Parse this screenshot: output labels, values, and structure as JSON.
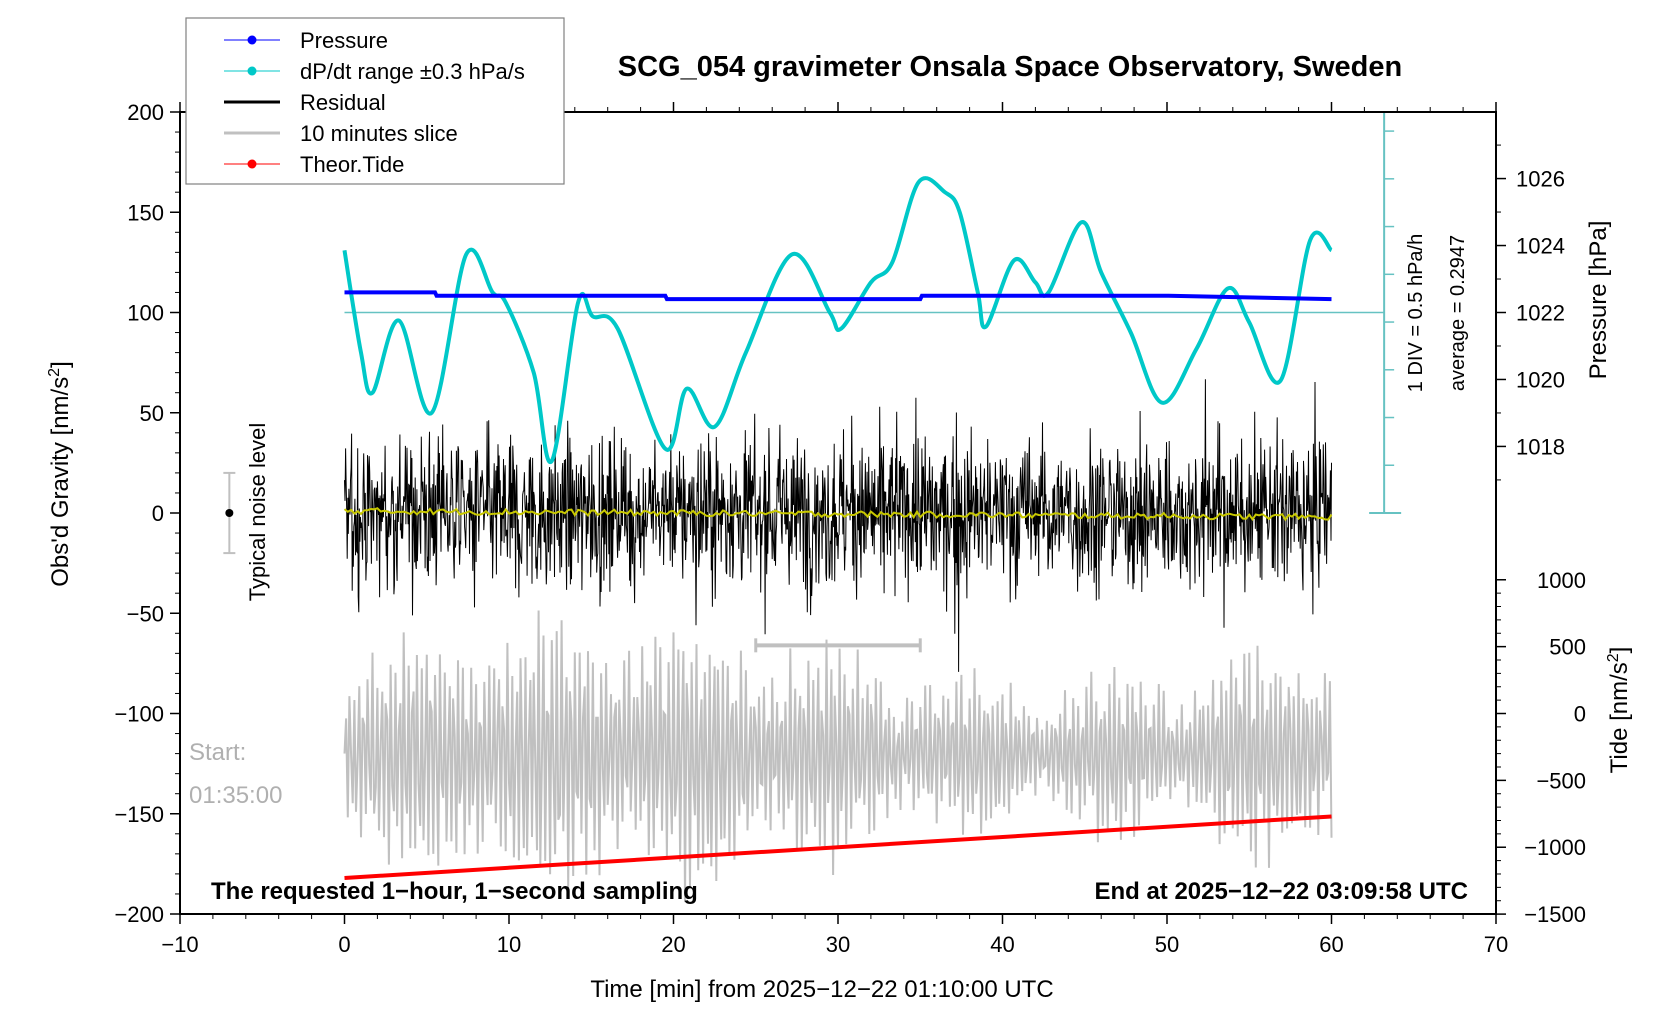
{
  "chart_data": {
    "type": "line",
    "title": "SCG_054 gravimeter Onsala Space Observatory, Sweden",
    "xlabel": "Time [min] from 2025−12−22 01:10:00 UTC",
    "ylabel": "Obs'd Gravity [nm/s²]",
    "ylabel_right_top": "Pressure [hPa]",
    "ylabel_right_bottom": "Tide [nm/s²]",
    "xlim": [
      -10,
      70
    ],
    "ylim": [
      -200,
      200
    ],
    "x_ticks": [
      -10,
      0,
      10,
      20,
      30,
      40,
      50,
      60,
      70
    ],
    "x_tick_labels": [
      "−10",
      "0",
      "10",
      "20",
      "30",
      "40",
      "50",
      "60",
      "70"
    ],
    "y_ticks": [
      -200,
      -150,
      -100,
      -50,
      0,
      50,
      100,
      150,
      200
    ],
    "y_tick_labels": [
      "−200",
      "−150",
      "−100",
      "−50",
      "0",
      "50",
      "100",
      "150",
      "200"
    ],
    "pressure_axis": {
      "ticks": [
        1018,
        1020,
        1022,
        1024,
        1026
      ],
      "tick_labels": [
        "1018",
        "1020",
        "1022",
        "1024",
        "1026"
      ],
      "gravity_at_1022": 100,
      "gravity_per_hPa": 16.7
    },
    "tide_axis": {
      "ticks": [
        -1500,
        -1000,
        -500,
        0,
        500,
        1000
      ],
      "tick_labels": [
        "−1500",
        "−1000",
        "−500",
        "0",
        "500",
        "1000"
      ],
      "gravity_at_0": -100,
      "gravity_per_unit": 0.0667
    },
    "legend": {
      "placement": "top-left",
      "entries": [
        {
          "label": "Pressure",
          "color": "#0000ff",
          "marker": "dot"
        },
        {
          "label": "dP/dt range ±0.3 hPa/s",
          "color": "#00c8c8",
          "marker": "dot"
        },
        {
          "label": "Residual",
          "color": "#000000",
          "marker": "none"
        },
        {
          "label": "10 minutes slice",
          "color": "#c0c0c0",
          "marker": "none"
        },
        {
          "label": "Theor.Tide",
          "color": "#ff0000",
          "marker": "dot"
        }
      ]
    },
    "series": [
      {
        "name": "Pressure",
        "unit": "hPa",
        "color": "#0000ff",
        "x": [
          0,
          5.5,
          5.6,
          19.5,
          19.6,
          35,
          35.1,
          50,
          50.1,
          60
        ],
        "values": [
          1022.6,
          1022.6,
          1022.5,
          1022.5,
          1022.4,
          1022.4,
          1022.5,
          1022.5,
          1022.5,
          1022.4
        ]
      },
      {
        "name": "dP/dt",
        "unit": "gravity-scale",
        "color": "#00c8c8",
        "x": [
          0,
          1,
          1.7,
          3.3,
          5.3,
          7.4,
          9,
          9.8,
          11.5,
          12.6,
          14.2,
          15.1,
          16.6,
          19.5,
          20.8,
          22.5,
          24.4,
          27.2,
          29.5,
          30.2,
          32,
          33.3,
          34.9,
          36.5,
          37.4,
          38.5,
          39,
          40.7,
          42,
          42.8,
          44.8,
          46,
          47.8,
          49.7,
          51.8,
          53.7,
          55,
          56.9,
          58.7,
          60
        ],
        "values": [
          131,
          80,
          60,
          96,
          50,
          129,
          110,
          105,
          70,
          26,
          105,
          98,
          92,
          32,
          62,
          43,
          80,
          129,
          100,
          92,
          115,
          125,
          165,
          160,
          150,
          110,
          93,
          126,
          115,
          110,
          145,
          120,
          90,
          55,
          82,
          112,
          95,
          66,
          136,
          131
        ]
      },
      {
        "name": "dP/dt reference (1 DIV = 0.5 hPa/h)",
        "color": "#66c2c2",
        "value_constant": 100
      },
      {
        "name": "Residual",
        "color": "#000000",
        "x_range": [
          0,
          60
        ],
        "approx_amplitude": 45,
        "extreme_max": 83,
        "extreme_min": -86
      },
      {
        "name": "Residual smoothed",
        "color": "#c8c800",
        "x_range": [
          0,
          60
        ],
        "values_start": 1,
        "values_end": -2
      },
      {
        "name": "10 minutes slice",
        "color": "#c0c0c0",
        "x_range": [
          0,
          60
        ],
        "center_gravity": -120,
        "approx_amplitude": 50
      },
      {
        "name": "Theor.Tide",
        "unit": "nm/s²",
        "color": "#ff0000",
        "x": [
          0,
          60
        ],
        "values": [
          -1230,
          -770
        ]
      }
    ],
    "annotations": {
      "noise_label": "Typical noise level",
      "noise_bar": {
        "x": -7,
        "center": 0,
        "half_range": 20
      },
      "slice_bar": {
        "x_start": 25,
        "x_end": 35,
        "y": -66
      },
      "start_label": "Start:",
      "start_time": "01:35:00",
      "requested_label": "The requested 1−hour, 1−second sampling",
      "end_label": "End at 2025−12−22 03:09:58 UTC",
      "div_label": "1 DIV = 0.5 hPa/h",
      "average_label": "average = 0.2947"
    },
    "grid": false
  }
}
